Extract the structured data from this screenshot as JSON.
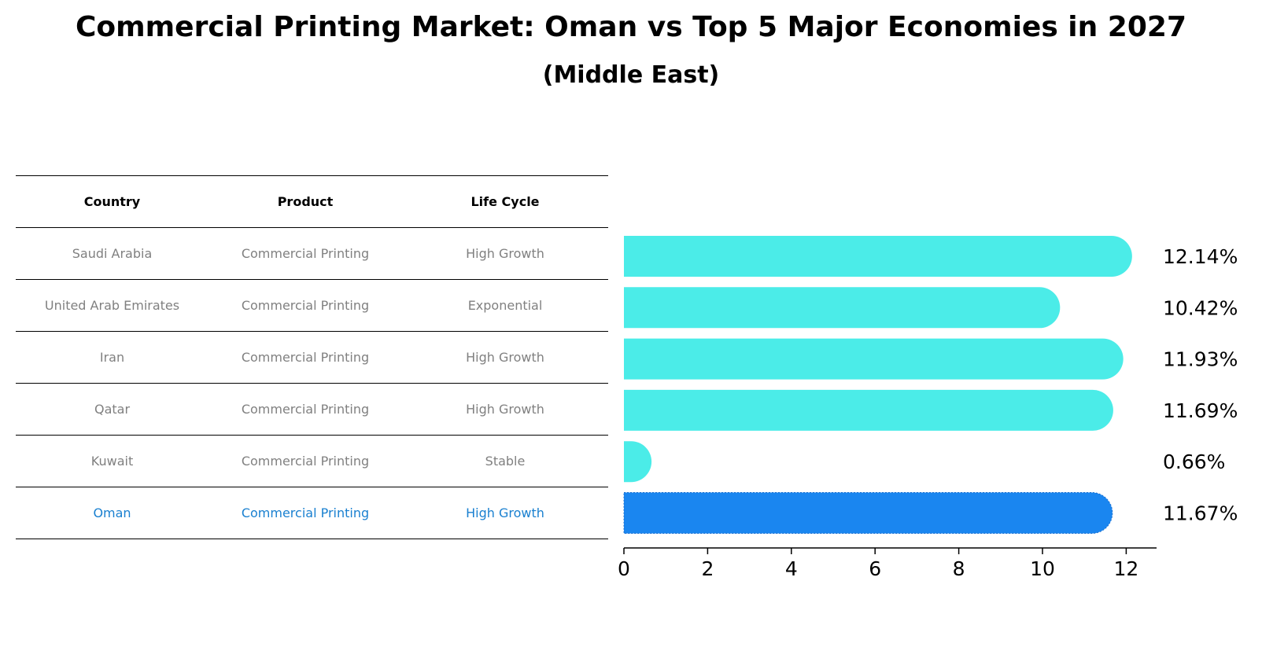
{
  "title": "Commercial Printing Market: Oman vs Top 5 Major Economies in 2027",
  "subtitle": "(Middle East)",
  "table": {
    "headers": [
      "Country",
      "Product",
      "Life Cycle"
    ],
    "rows": [
      {
        "country": "Saudi Arabia",
        "product": "Commercial Printing",
        "life_cycle": "High Growth"
      },
      {
        "country": "United Arab Emirates",
        "product": "Commercial Printing",
        "life_cycle": "Exponential"
      },
      {
        "country": "Iran",
        "product": "Commercial Printing",
        "life_cycle": "High Growth"
      },
      {
        "country": "Qatar",
        "product": "Commercial Printing",
        "life_cycle": "High Growth"
      },
      {
        "country": "Kuwait",
        "product": "Commercial Printing",
        "life_cycle": "Stable"
      },
      {
        "country": "Oman",
        "product": "Commercial Printing",
        "life_cycle": "High Growth"
      }
    ]
  },
  "chart_data": {
    "type": "bar",
    "orientation": "horizontal",
    "categories": [
      "Saudi Arabia",
      "United Arab Emirates",
      "Iran",
      "Qatar",
      "Kuwait",
      "Oman"
    ],
    "values": [
      12.14,
      10.42,
      11.93,
      11.69,
      0.66,
      11.67
    ],
    "value_labels": [
      "12.14%",
      "10.42%",
      "11.93%",
      "11.69%",
      "0.66%",
      "11.67%"
    ],
    "highlight": "Oman",
    "xlim": [
      0,
      12.75
    ],
    "xticks": [
      0,
      2,
      4,
      6,
      8,
      10,
      12
    ],
    "colors": {
      "default": "#4bece8",
      "highlight": "#1a86f0",
      "table_highlight_text": "#1a80d0",
      "table_text": "#808080"
    }
  }
}
